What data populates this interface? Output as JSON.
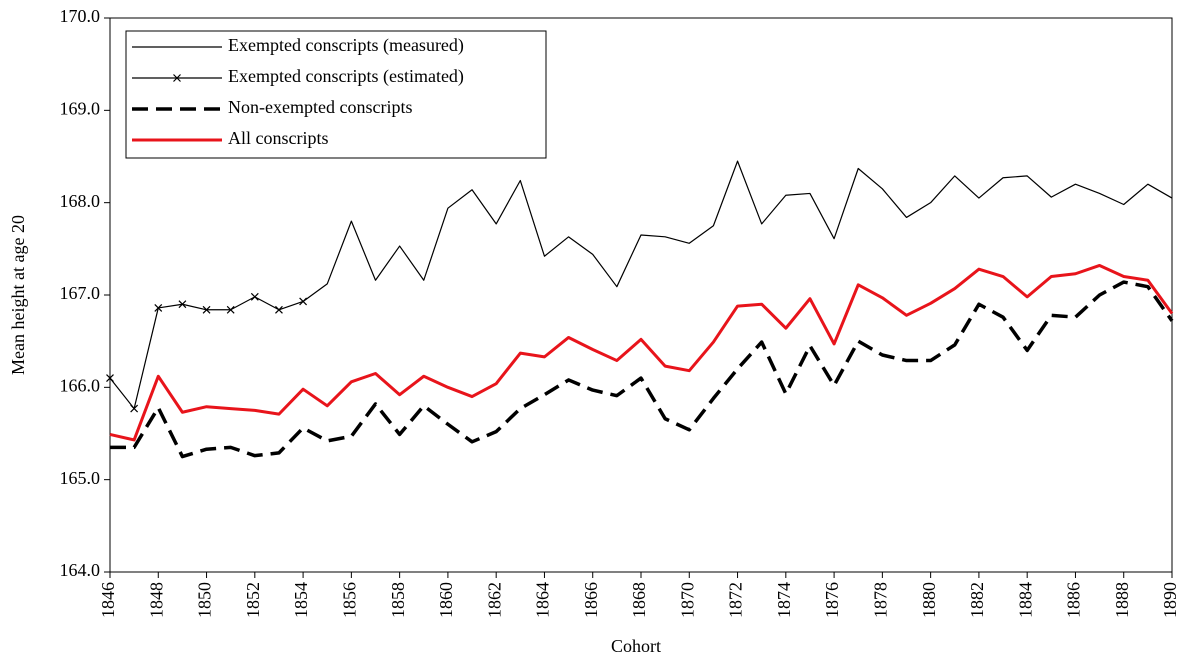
{
  "chart_data": {
    "type": "line",
    "x_label": "Cohort",
    "y_label": "Mean height at age 20",
    "x": [
      1846,
      1847,
      1848,
      1849,
      1850,
      1851,
      1852,
      1853,
      1854,
      1855,
      1856,
      1857,
      1858,
      1859,
      1860,
      1861,
      1862,
      1863,
      1864,
      1865,
      1866,
      1867,
      1868,
      1869,
      1870,
      1871,
      1872,
      1873,
      1874,
      1875,
      1876,
      1877,
      1878,
      1879,
      1880,
      1881,
      1882,
      1883,
      1884,
      1885,
      1886,
      1887,
      1888,
      1889,
      1890
    ],
    "xlim": [
      1846,
      1890
    ],
    "xticks": [
      1846,
      1848,
      1850,
      1852,
      1854,
      1856,
      1858,
      1860,
      1862,
      1864,
      1866,
      1868,
      1870,
      1872,
      1874,
      1876,
      1878,
      1880,
      1882,
      1884,
      1886,
      1888,
      1890
    ],
    "ylim": [
      164,
      170
    ],
    "yticks": [
      {
        "value": 164,
        "label": "164.0"
      },
      {
        "value": 165,
        "label": "165.0"
      },
      {
        "value": 166,
        "label": "166.0"
      },
      {
        "value": 167,
        "label": "167.0"
      },
      {
        "value": 168,
        "label": "168.0"
      },
      {
        "value": 169,
        "label": "169.0"
      },
      {
        "value": 170,
        "label": "170.0"
      }
    ],
    "legend": "upper left",
    "series": [
      {
        "name": "Exempted conscripts (measured)",
        "color": "#000000",
        "style": "thin",
        "values": [
          null,
          null,
          null,
          null,
          null,
          null,
          null,
          null,
          166.93,
          167.12,
          167.8,
          167.16,
          167.53,
          167.16,
          167.94,
          168.14,
          167.77,
          168.24,
          167.42,
          167.63,
          167.44,
          167.09,
          167.65,
          167.63,
          167.56,
          167.75,
          168.45,
          167.77,
          168.08,
          168.1,
          167.61,
          168.37,
          168.15,
          167.84,
          168.0,
          168.29,
          168.05,
          168.27,
          168.29,
          168.06,
          168.2,
          168.1,
          167.98,
          168.2,
          168.05
        ]
      },
      {
        "name": "Exempted conscripts (estimated)",
        "color": "#000000",
        "style": "thin",
        "marker": "x",
        "values": [
          166.1,
          165.77,
          166.86,
          166.9,
          166.84,
          166.84,
          166.98,
          166.84,
          166.93,
          null,
          null,
          null,
          null,
          null,
          null,
          null,
          null,
          null,
          null,
          null,
          null,
          null,
          null,
          null,
          null,
          null,
          null,
          null,
          null,
          null,
          null,
          null,
          null,
          null,
          null,
          null,
          null,
          null,
          null,
          null,
          null,
          null,
          null,
          null,
          null
        ]
      },
      {
        "name": "Non-exempted conscripts",
        "color": "#000000",
        "style": "dashed",
        "values": [
          165.35,
          165.35,
          165.78,
          165.25,
          165.33,
          165.35,
          165.26,
          165.29,
          165.56,
          165.42,
          165.47,
          165.82,
          165.49,
          165.8,
          165.6,
          165.41,
          165.52,
          165.77,
          165.92,
          166.08,
          165.97,
          165.91,
          166.1,
          165.66,
          165.54,
          165.88,
          166.2,
          166.49,
          165.93,
          166.45,
          166.02,
          166.5,
          166.35,
          166.29,
          166.29,
          166.46,
          166.9,
          166.76,
          166.4,
          166.78,
          166.76,
          167.0,
          167.14,
          167.09,
          166.72
        ]
      },
      {
        "name": "All conscripts",
        "color": "#e8141b",
        "style": "thick",
        "values": [
          165.49,
          165.43,
          166.12,
          165.73,
          165.79,
          165.77,
          165.75,
          165.71,
          165.98,
          165.8,
          166.06,
          166.15,
          165.92,
          166.12,
          166.0,
          165.9,
          166.04,
          166.37,
          166.33,
          166.54,
          166.41,
          166.29,
          166.52,
          166.23,
          166.18,
          166.49,
          166.88,
          166.9,
          166.64,
          166.96,
          166.47,
          167.11,
          166.97,
          166.78,
          166.91,
          167.07,
          167.28,
          167.2,
          166.98,
          167.2,
          167.23,
          167.32,
          167.2,
          167.16,
          166.8
        ]
      }
    ]
  }
}
